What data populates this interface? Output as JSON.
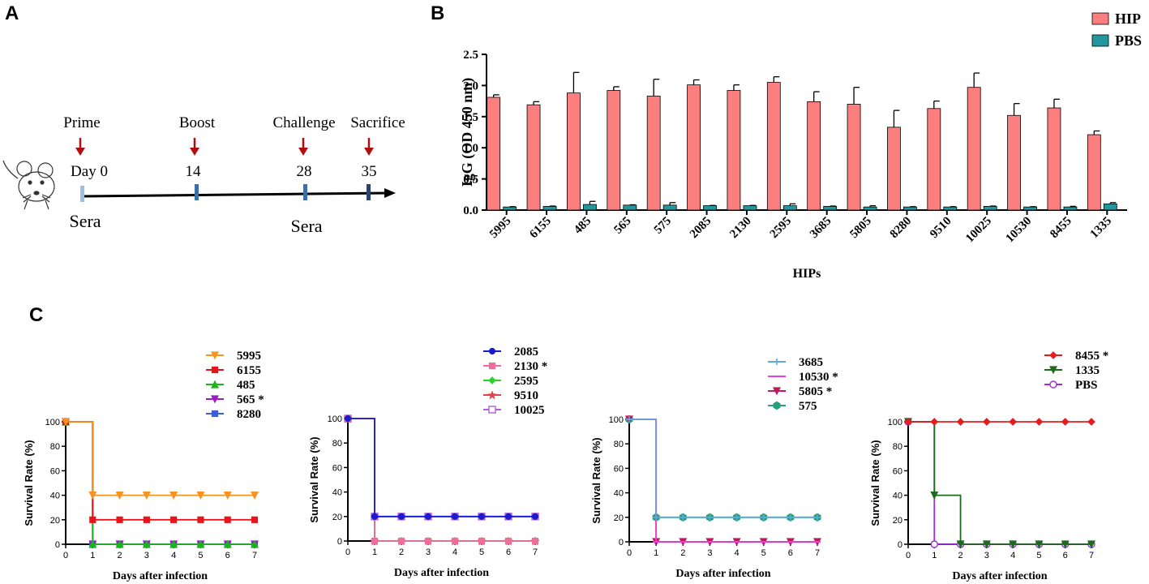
{
  "panels": {
    "a": "A",
    "b": "B",
    "c": "C"
  },
  "colors": {
    "hip": "#fb7f7f",
    "pbs": "#23969e",
    "arrow": "#b10f0f",
    "tick": "#3a6fa8",
    "tick_light": "#9ec0e6"
  },
  "timeline": {
    "events": [
      {
        "label": "Prime",
        "day": "Day 0"
      },
      {
        "label": "Boost",
        "day": "14"
      },
      {
        "label": "Challenge",
        "day": "28"
      },
      {
        "label": "Sacrifice",
        "day": "35"
      }
    ],
    "sera": [
      "Sera",
      "Sera"
    ],
    "icon": "mouse-icon"
  },
  "chart_data": [
    {
      "type": "bar",
      "title": "",
      "xlabel": "HIPs",
      "ylabel": "IgG (OD 450 nm)",
      "ylim": [
        0,
        2.5
      ],
      "yticks": [
        "0.0",
        "0.5",
        "1.0",
        "1.5",
        "2.0",
        "2.5"
      ],
      "categories": [
        "5995",
        "6155",
        "485",
        "565",
        "575",
        "2085",
        "2130",
        "2595",
        "3685",
        "5805",
        "8280",
        "9510",
        "10025",
        "10530",
        "8455",
        "1335"
      ],
      "legend": [
        "HIP",
        "PBS"
      ],
      "series": [
        {
          "name": "HIP",
          "values": [
            1.81,
            1.69,
            1.88,
            1.92,
            1.83,
            2.01,
            1.92,
            2.05,
            1.74,
            1.7,
            1.33,
            1.63,
            1.97,
            1.52,
            1.64,
            1.21
          ],
          "errors": [
            0.04,
            0.05,
            0.33,
            0.06,
            0.27,
            0.08,
            0.09,
            0.09,
            0.16,
            0.27,
            0.27,
            0.12,
            0.23,
            0.19,
            0.14,
            0.06
          ]
        },
        {
          "name": "PBS",
          "values": [
            0.05,
            0.06,
            0.09,
            0.08,
            0.08,
            0.07,
            0.07,
            0.07,
            0.06,
            0.05,
            0.05,
            0.05,
            0.06,
            0.05,
            0.05,
            0.1
          ],
          "errors": [
            0.005,
            0.005,
            0.05,
            0.005,
            0.04,
            0.005,
            0.005,
            0.03,
            0.005,
            0.02,
            0.005,
            0.005,
            0.005,
            0.005,
            0.01,
            0.02
          ]
        }
      ]
    },
    {
      "type": "line",
      "xlabel": "Days after infection",
      "ylabel": "Survival Rate (%)",
      "x": [
        0,
        1,
        2,
        3,
        4,
        5,
        6,
        7
      ],
      "ylim": [
        0,
        100
      ],
      "yticks": [
        "0",
        "20",
        "40",
        "60",
        "80",
        "100"
      ],
      "series": [
        {
          "name": "5995",
          "color": "#f7931e",
          "marker": "tri-down",
          "values": [
            100,
            40,
            40,
            40,
            40,
            40,
            40,
            40
          ]
        },
        {
          "name": "6155",
          "color": "#e8141b",
          "marker": "square",
          "values": [
            100,
            20,
            20,
            20,
            20,
            20,
            20,
            20
          ]
        },
        {
          "name": "485",
          "color": "#1bb51b",
          "marker": "tri-up",
          "values": [
            100,
            0,
            0,
            0,
            0,
            0,
            0,
            0
          ]
        },
        {
          "name": "565 *",
          "color": "#9a1dc5",
          "marker": "tri-down",
          "values": [
            100,
            0,
            0,
            0,
            0,
            0,
            0,
            0
          ]
        },
        {
          "name": "8280",
          "color": "#3d5fdc",
          "marker": "square",
          "values": [
            100,
            0,
            0,
            0,
            0,
            0,
            0,
            0
          ]
        }
      ]
    },
    {
      "type": "line",
      "xlabel": "Days after infection",
      "ylabel": "Survival Rate (%)",
      "x": [
        0,
        1,
        2,
        3,
        4,
        5,
        6,
        7
      ],
      "ylim": [
        0,
        100
      ],
      "yticks": [
        "0",
        "20",
        "40",
        "60",
        "80",
        "100"
      ],
      "series": [
        {
          "name": "2085",
          "color": "#1a1ad0",
          "marker": "circle",
          "values": [
            100,
            20,
            20,
            20,
            20,
            20,
            20,
            20
          ]
        },
        {
          "name": "2130 *",
          "color": "#ef6d9a",
          "marker": "square",
          "values": [
            100,
            0,
            0,
            0,
            0,
            0,
            0,
            0
          ]
        },
        {
          "name": "2595",
          "color": "#2fd12f",
          "marker": "diamond",
          "values": [
            100,
            0,
            0,
            0,
            0,
            0,
            0,
            0
          ]
        },
        {
          "name": "9510",
          "color": "#e0424a",
          "marker": "star",
          "values": [
            100,
            0,
            0,
            0,
            0,
            0,
            0,
            0
          ]
        },
        {
          "name": "10025",
          "color": "#b05fd6",
          "marker": "open-square",
          "values": [
            100,
            20,
            20,
            20,
            20,
            20,
            20,
            20
          ]
        }
      ]
    },
    {
      "type": "line",
      "xlabel": "Days after infection",
      "ylabel": "Survival Rate (%)",
      "x": [
        0,
        1,
        2,
        3,
        4,
        5,
        6,
        7
      ],
      "ylim": [
        0,
        100
      ],
      "yticks": [
        "0",
        "20",
        "40",
        "60",
        "80",
        "100"
      ],
      "series": [
        {
          "name": "3685",
          "color": "#5ea9e0",
          "marker": "plus",
          "values": [
            100,
            20,
            20,
            20,
            20,
            20,
            20,
            20
          ]
        },
        {
          "name": "10530 *",
          "color": "#e340e3",
          "marker": "dash",
          "values": [
            100,
            0,
            0,
            0,
            0,
            0,
            0,
            0
          ]
        },
        {
          "name": "5805 *",
          "color": "#c0195e",
          "marker": "tri-down",
          "values": [
            100,
            0,
            0,
            0,
            0,
            0,
            0,
            0
          ]
        },
        {
          "name": "575",
          "color": "#25a07a",
          "marker": "hexagon",
          "values": [
            100,
            20,
            20,
            20,
            20,
            20,
            20,
            20
          ]
        }
      ]
    },
    {
      "type": "line",
      "xlabel": "Days after infection",
      "ylabel": "Survival Rate (%)",
      "x": [
        0,
        1,
        2,
        3,
        4,
        5,
        6,
        7
      ],
      "ylim": [
        0,
        100
      ],
      "yticks": [
        "0",
        "20",
        "40",
        "60",
        "80",
        "100"
      ],
      "series": [
        {
          "name": "8455 *",
          "color": "#e81c1c",
          "marker": "diamond",
          "values": [
            100,
            100,
            100,
            100,
            100,
            100,
            100,
            100
          ]
        },
        {
          "name": "1335",
          "color": "#1c6b1c",
          "marker": "tri-down",
          "values": [
            100,
            40,
            0,
            0,
            0,
            0,
            0,
            0
          ]
        },
        {
          "name": "PBS",
          "color": "#9b30d8",
          "marker": "open-circle",
          "values": [
            100,
            0,
            0,
            0,
            0,
            0,
            0,
            0
          ]
        }
      ]
    }
  ]
}
